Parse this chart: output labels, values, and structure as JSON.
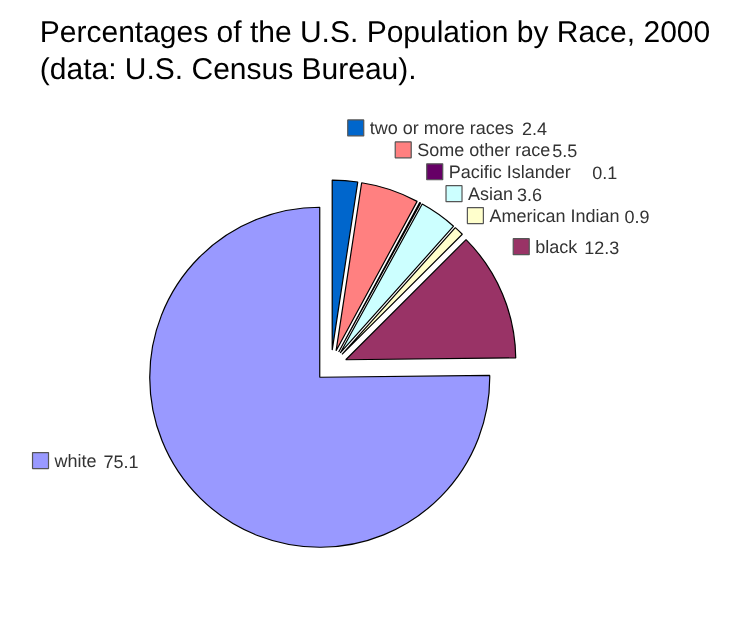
{
  "chart_data": {
    "type": "pie",
    "title": "Percentages of the U.S. Population by Race, 2000\n(data: U.S. Census Bureau).",
    "categories": [
      "two or more races",
      "Some other race",
      "Pacific Islander",
      "Asian",
      "American Indian",
      "black",
      "white"
    ],
    "values": [
      2.4,
      5.5,
      0.1,
      3.6,
      0.9,
      12.3,
      75.1
    ],
    "colors": [
      "#0066cc",
      "#ff8080",
      "#660066",
      "#ccffff",
      "#ffffcc",
      "#993366",
      "#9999ff"
    ],
    "data_labels": true,
    "legend": "top right"
  }
}
